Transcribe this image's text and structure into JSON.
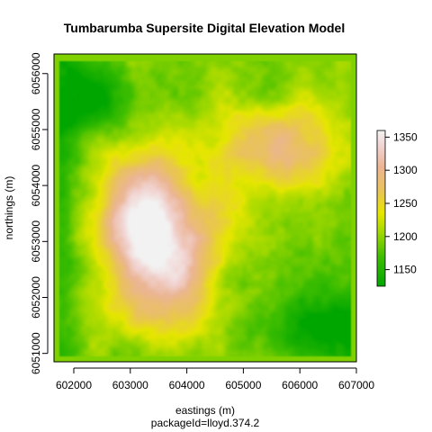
{
  "map": {
    "title": "Tumbarumba Supersite Digital Elevation Model",
    "xlabel": "eastings (m)",
    "ylabel": "northings (m)",
    "caption": "packageId=lloyd.374.2",
    "x_range": [
      601650,
      607000
    ],
    "y_range": [
      6050850,
      6056350
    ],
    "x_ticks": [
      {
        "value": 602000,
        "label": "602000"
      },
      {
        "value": 603000,
        "label": "603000"
      },
      {
        "value": 604000,
        "label": "604000"
      },
      {
        "value": 605000,
        "label": "605000"
      },
      {
        "value": 606000,
        "label": "606000"
      },
      {
        "value": 607000,
        "label": "607000"
      }
    ],
    "y_ticks": [
      {
        "value": 6051000,
        "label": "6051000"
      },
      {
        "value": 6052000,
        "label": "6052000"
      },
      {
        "value": 6053000,
        "label": "6053000"
      },
      {
        "value": 6054000,
        "label": "6054000"
      },
      {
        "value": 6055000,
        "label": "6055000"
      },
      {
        "value": 6056000,
        "label": "6056000"
      }
    ],
    "elevation_range": [
      1125,
      1360
    ],
    "background_color": "#7fd100",
    "colorbar_ticks": [
      {
        "value": 1150,
        "label": "1150"
      },
      {
        "value": 1200,
        "label": "1200"
      },
      {
        "value": 1250,
        "label": "1250"
      },
      {
        "value": 1300,
        "label": "1300"
      },
      {
        "value": 1350,
        "label": "1350"
      }
    ],
    "color_ramp": [
      {
        "value": 1125,
        "color": "#00a600"
      },
      {
        "value": 1170,
        "color": "#3fbe00"
      },
      {
        "value": 1205,
        "color": "#9fd800"
      },
      {
        "value": 1235,
        "color": "#e6e600"
      },
      {
        "value": 1270,
        "color": "#e9c25b"
      },
      {
        "value": 1305,
        "color": "#ebb594"
      },
      {
        "value": 1335,
        "color": "#f1d2cf"
      },
      {
        "value": 1360,
        "color": "#f2f2f2"
      }
    ]
  }
}
